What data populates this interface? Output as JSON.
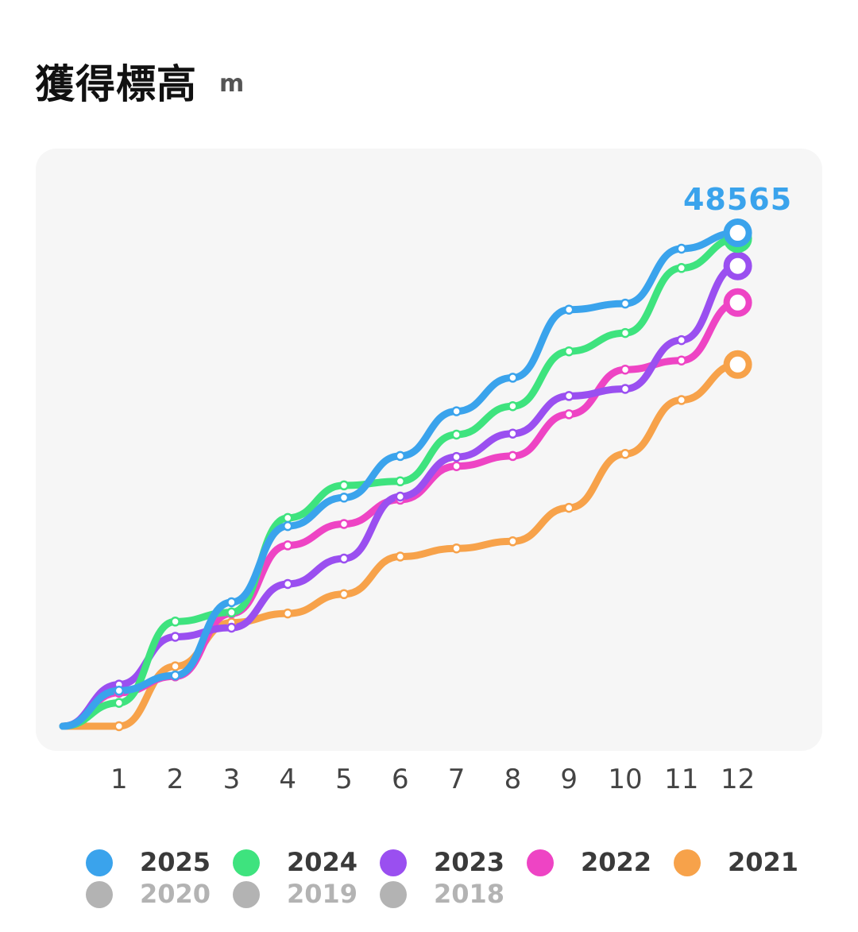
{
  "header": {
    "title": "獲得標高",
    "unit": "m"
  },
  "chart_data": {
    "type": "line",
    "title": "獲得標高",
    "ylabel": "m",
    "xlabel": "",
    "x": [
      0,
      1,
      2,
      3,
      4,
      5,
      6,
      7,
      8,
      9,
      10,
      11,
      12
    ],
    "x_tick_labels": [
      "1",
      "2",
      "3",
      "4",
      "5",
      "6",
      "7",
      "8",
      "9",
      "10",
      "11",
      "12"
    ],
    "ylim": [
      0,
      53000
    ],
    "grid": false,
    "legend_position": "bottom",
    "end_label": "48565",
    "series": [
      {
        "name": "2021",
        "color": "#f7a24a",
        "values": [
          0,
          0,
          5900,
          10200,
          11100,
          13000,
          16700,
          17500,
          18200,
          21500,
          26800,
          32100,
          35600
        ]
      },
      {
        "name": "2022",
        "color": "#ee44c4",
        "values": [
          0,
          3300,
          4900,
          11100,
          17800,
          19900,
          22300,
          25600,
          26600,
          30700,
          35100,
          36000,
          41700
        ]
      },
      {
        "name": "2023",
        "color": "#9a4ff0",
        "values": [
          0,
          4100,
          8800,
          9700,
          14000,
          16500,
          22600,
          26500,
          28800,
          32500,
          33200,
          38000,
          45300
        ]
      },
      {
        "name": "2024",
        "color": "#3ee37e",
        "values": [
          0,
          2300,
          10300,
          11200,
          20500,
          23700,
          24100,
          28700,
          31500,
          36900,
          38700,
          45100,
          48000
        ]
      },
      {
        "name": "2025",
        "color": "#3aa3ec",
        "values": [
          0,
          3500,
          5000,
          12200,
          19700,
          22500,
          26600,
          31000,
          34300,
          41000,
          41600,
          47000,
          48565
        ]
      }
    ]
  },
  "legend": {
    "items": [
      {
        "label": "2025",
        "color": "#3aa3ec",
        "active": true
      },
      {
        "label": "2024",
        "color": "#3ee37e",
        "active": true
      },
      {
        "label": "2023",
        "color": "#9a4ff0",
        "active": true
      },
      {
        "label": "2022",
        "color": "#ee44c4",
        "active": true
      },
      {
        "label": "2021",
        "color": "#f7a24a",
        "active": true
      },
      {
        "label": "2020",
        "color": "#b3b3b3",
        "active": false
      },
      {
        "label": "2019",
        "color": "#b3b3b3",
        "active": false
      },
      {
        "label": "2018",
        "color": "#b3b3b3",
        "active": false
      }
    ]
  },
  "colors": {
    "active_label": "#3a3a3a",
    "inactive_label": "#b3b3b3",
    "panel": "#f6f6f6"
  }
}
